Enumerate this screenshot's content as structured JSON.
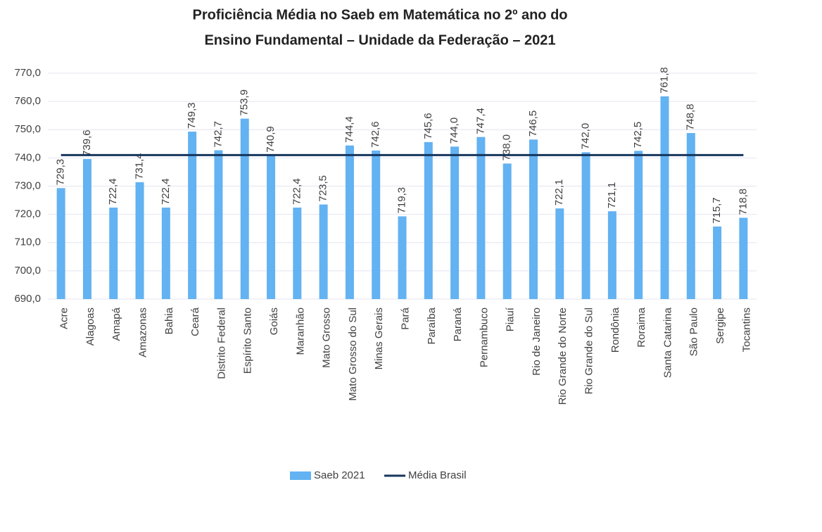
{
  "chart_data": {
    "type": "bar",
    "title": [
      "Proficiência Média no Saeb em Matemática no 2º ano do",
      "Ensino Fundamental – Unidade da Federação – 2021"
    ],
    "categories": [
      "Acre",
      "Alagoas",
      "Amapá",
      "Amazonas",
      "Bahia",
      "Ceará",
      "Distrito Federal",
      "Espírito Santo",
      "Goiás",
      "Maranhão",
      "Mato Grosso",
      "Mato Grosso do Sul",
      "Minas Gerais",
      "Pará",
      "Paraíba",
      "Paraná",
      "Pernambuco",
      "Piauí",
      "Rio de Janeiro",
      "Rio Grande do Norte",
      "Rio Grande do Sul",
      "Rondônia",
      "Roraima",
      "Santa Catarina",
      "São Paulo",
      "Sergipe",
      "Tocantins"
    ],
    "series": [
      {
        "name": "Saeb 2021",
        "type": "bar",
        "color": "#63b2f2",
        "values": [
          729.3,
          739.6,
          722.4,
          731.4,
          722.4,
          749.3,
          742.7,
          753.9,
          740.9,
          722.4,
          723.5,
          744.4,
          742.6,
          719.3,
          745.6,
          744.0,
          747.4,
          738.0,
          746.5,
          722.1,
          742.0,
          721.1,
          742.5,
          761.8,
          748.8,
          715.7,
          718.8
        ],
        "value_labels": [
          "729,3",
          "739,6",
          "722,4",
          "731,4",
          "722,4",
          "749,3",
          "742,7",
          "753,9",
          "740,9",
          "722,4",
          "723,5",
          "744,4",
          "742,6",
          "719,3",
          "745,6",
          "744,0",
          "747,4",
          "738,0",
          "746,5",
          "722,1",
          "742,0",
          "721,1",
          "742,5",
          "761,8",
          "748,8",
          "715,7",
          "718,8"
        ]
      },
      {
        "name": "Média Brasil",
        "type": "line",
        "color": "#17365d",
        "values": [
          741,
          741,
          741,
          741,
          741,
          741,
          741,
          741,
          741,
          741,
          741,
          741,
          741,
          741,
          741,
          741,
          741,
          741,
          741,
          741,
          741,
          741,
          741,
          741,
          741,
          741,
          741
        ]
      }
    ],
    "ylim": [
      690,
      770
    ],
    "yticks": [
      {
        "value": 690,
        "label": "690,0"
      },
      {
        "value": 700,
        "label": "700,0"
      },
      {
        "value": 710,
        "label": "710,0"
      },
      {
        "value": 720,
        "label": "720,0"
      },
      {
        "value": 730,
        "label": "730,0"
      },
      {
        "value": 740,
        "label": "740,0"
      },
      {
        "value": 750,
        "label": "750,0"
      },
      {
        "value": 760,
        "label": "760,0"
      },
      {
        "value": 770,
        "label": "770,0"
      }
    ],
    "grid": true,
    "legend": "bottom"
  }
}
